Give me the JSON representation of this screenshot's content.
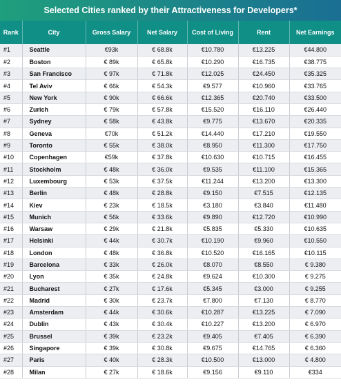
{
  "title": "Selected Cities ranked by their Attractiveness for Developers*",
  "columns": [
    "Rank",
    "City",
    "Gross Salary",
    "Net Salary",
    "Cost of Living",
    "Rent",
    "Net Earnings"
  ],
  "rows": [
    [
      "#1",
      "Seattle",
      "€93k",
      "€ 68.8k",
      "€10.780",
      "€13.225",
      "€44.800"
    ],
    [
      "#2",
      "Boston",
      "€ 89k",
      "€ 65.8k",
      "€10.290",
      "€16.735",
      "€38.775"
    ],
    [
      "#3",
      "San Francisco",
      "€ 97k",
      "€ 71.8k",
      "€12.025",
      "€24.450",
      "€35.325"
    ],
    [
      "#4",
      "Tel Aviv",
      "€ 66k",
      "€ 54.3k",
      "€9.577",
      "€10.960",
      "€33.765"
    ],
    [
      "#5",
      "New York",
      "€ 90k",
      "€ 66.6k",
      "€12.365",
      "€20.740",
      "€33.500"
    ],
    [
      "#6",
      "Zurich",
      "€ 79k",
      "€ 57.8k",
      "€15.520",
      "€16.110",
      "€26.440"
    ],
    [
      "#7",
      "Sydney",
      "€ 58k",
      "€ 43.8k",
      "€9.775",
      "€13.670",
      "€20.335"
    ],
    [
      "#8",
      "Geneva",
      "€70k",
      "€ 51.2k",
      "€14.440",
      "€17.210",
      "€19.550"
    ],
    [
      "#9",
      "Toronto",
      "€ 55k",
      "€ 38.0k",
      "€8.950",
      "€11.300",
      "€17.750"
    ],
    [
      "#10",
      "Copenhagen",
      "€59k",
      "€ 37.8k",
      "€10.630",
      "€10.715",
      "€16.455"
    ],
    [
      "#11",
      "Stockholm",
      "€ 48k",
      "€ 36.0k",
      "€9.535",
      "€11.100",
      "€15.365"
    ],
    [
      "#12",
      "Luxembourg",
      "€ 53k",
      "€ 37.5k",
      "€11.244",
      "€13.200",
      "€13.300"
    ],
    [
      "#13",
      "Berlin",
      "€ 48k",
      "€ 28.8k",
      "€9.150",
      "€7.515",
      "€12.135"
    ],
    [
      "#14",
      "Kiev",
      "€ 23k",
      "€ 18.5k",
      "€3.180",
      "€3.840",
      "€11.480"
    ],
    [
      "#15",
      "Munich",
      "€ 56k",
      "€ 33.6k",
      "€9.890",
      "€12.720",
      "€10.990"
    ],
    [
      "#16",
      "Warsaw",
      "€ 29k",
      "€ 21.8k",
      "€5.835",
      "€5.330",
      "€10.635"
    ],
    [
      "#17",
      "Helsinki",
      "€ 44k",
      "€ 30.7k",
      "€10.190",
      "€9.960",
      "€10.550"
    ],
    [
      "#18",
      "London",
      "€ 48k",
      "€ 36.8k",
      "€10.520",
      "€16.165",
      "€10.115"
    ],
    [
      "#19",
      "Barcelona",
      "€ 33k",
      "€ 26.0k",
      "€8.070",
      "€8.550",
      "€ 9.380"
    ],
    [
      "#20",
      "Lyon",
      "€ 35k",
      "€ 24.8k",
      "€9.624",
      "€10.300",
      "€ 9.275"
    ],
    [
      "#21",
      "Bucharest",
      "€ 27k",
      "€ 17.6k",
      "€5.345",
      "€3.000",
      "€ 9.255"
    ],
    [
      "#22",
      "Madrid",
      "€ 30k",
      "€ 23.7k",
      "€7.800",
      "€7.130",
      "€ 8.770"
    ],
    [
      "#23",
      "Amsterdam",
      "€ 44k",
      "€ 30.6k",
      "€10.287",
      "€13.225",
      "€ 7.090"
    ],
    [
      "#24",
      "Dublin",
      "€ 43k",
      "€ 30.4k",
      "€10.227",
      "€13.200",
      "€ 6.970"
    ],
    [
      "#25",
      "Brussel",
      "€ 39k",
      "€ 23.2k",
      "€9.405",
      "€7.405",
      "€ 6.390"
    ],
    [
      "#26",
      "Singapore",
      "€ 39k",
      "€ 30.8k",
      "€9.675",
      "€14.765",
      "€ 6.360"
    ],
    [
      "#27",
      "Paris",
      "€ 40k",
      "€ 28.3k",
      "€10.500",
      "€13.000",
      "€ 4.800"
    ],
    [
      "#28",
      "Milan",
      "€ 27k",
      "€ 18.6k",
      "€9.156",
      "€9.110",
      "€334"
    ]
  ],
  "colors": {
    "title_gradient_start": "#1f9f7d",
    "title_gradient_end": "#1a6f93",
    "header_bg": "#0f8f86",
    "row_alt": "#eceef2"
  }
}
